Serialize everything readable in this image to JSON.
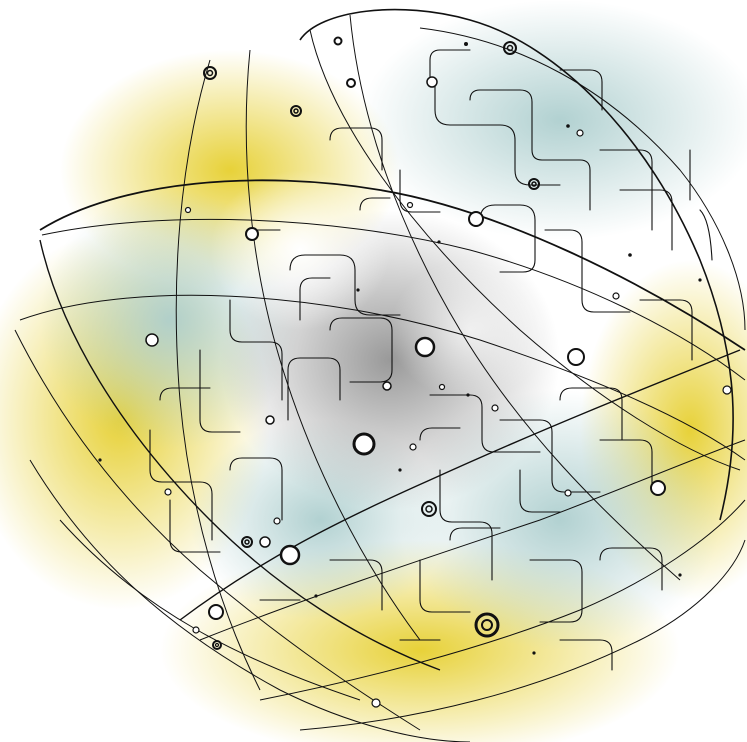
{
  "illustration": {
    "subject": "circuit-globe",
    "palette": {
      "background": "#ffffff",
      "glow_yellow": "#e8d23a",
      "glow_teal": "#b9d6d6",
      "core_grey": "#9a9a9a",
      "line": "#111111",
      "node_fill": "#ffffff"
    }
  }
}
